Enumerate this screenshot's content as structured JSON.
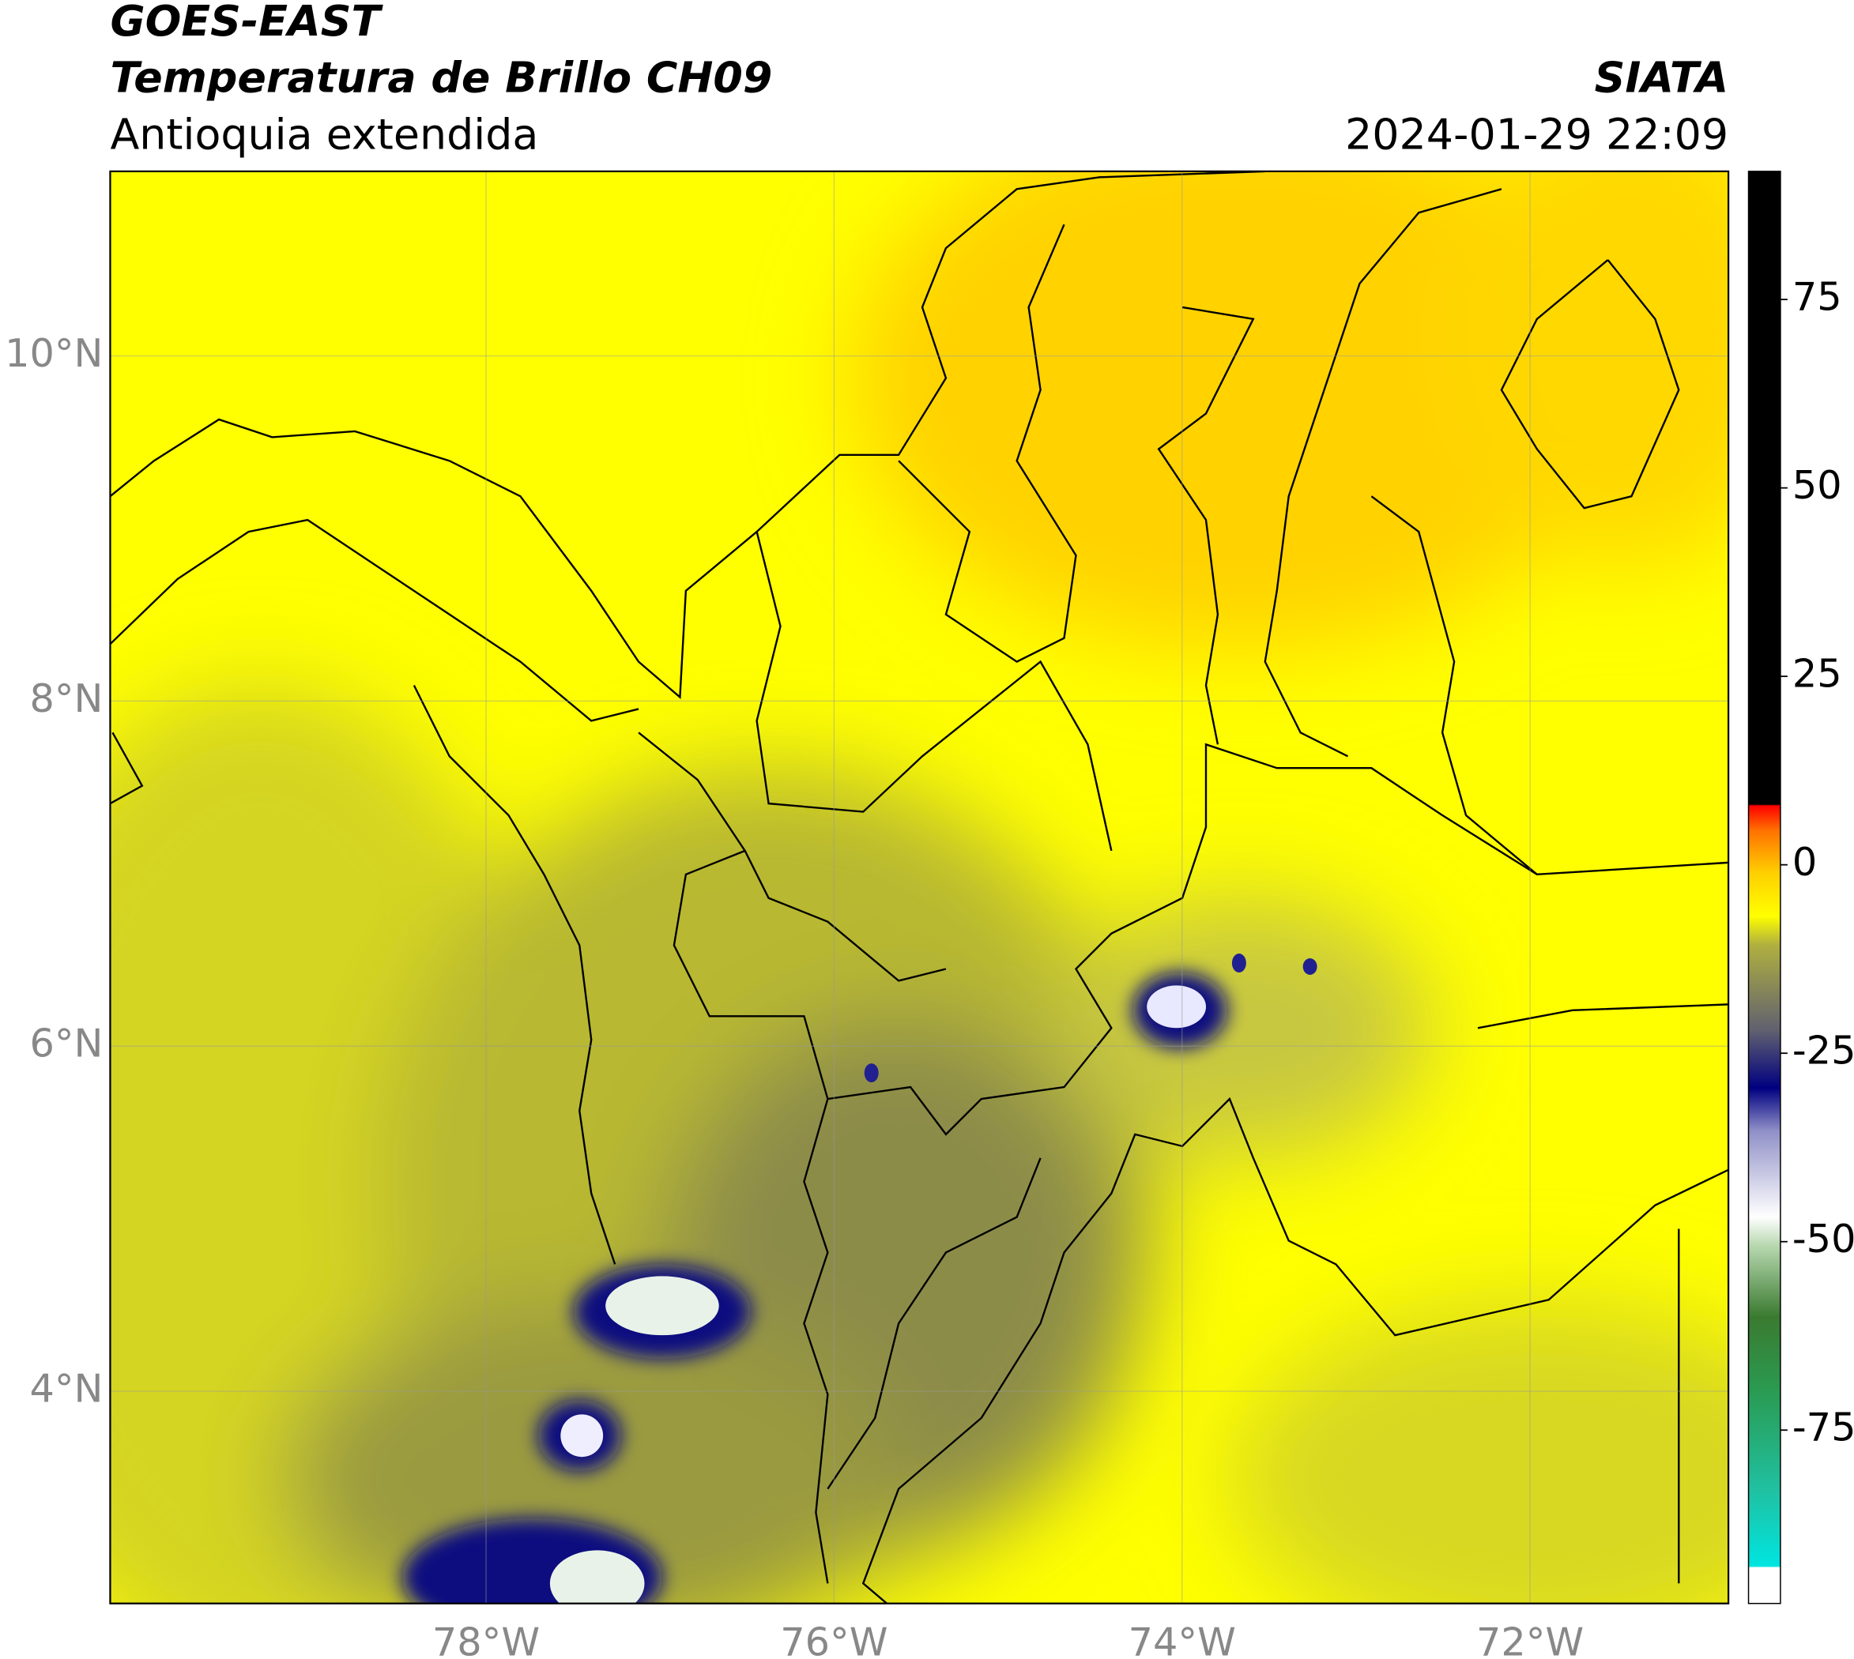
{
  "header": {
    "satellite": "GOES-EAST",
    "product": "Temperatura de Brillo CH09",
    "region": "Antioquia extendida",
    "agency": "SIATA",
    "datetime": "2024-01-29 22:09"
  },
  "map": {
    "lon_range": [
      -80.16,
      -70.86
    ],
    "lat_range": [
      2.77,
      11.07
    ],
    "grid": true,
    "lon_ticks": [
      {
        "value": -78,
        "label": "78°W"
      },
      {
        "value": -76,
        "label": "76°W"
      },
      {
        "value": -74,
        "label": "74°W"
      },
      {
        "value": -72,
        "label": "72°W"
      }
    ],
    "lat_ticks": [
      {
        "value": 4,
        "label": "4°N"
      },
      {
        "value": 6,
        "label": "6°N"
      },
      {
        "value": 8,
        "label": "8°N"
      },
      {
        "value": 10,
        "label": "10°N"
      }
    ]
  },
  "colorbar": {
    "range": [
      -98,
      92
    ],
    "ticks": [
      75,
      50,
      25,
      0,
      -25,
      -50,
      -75
    ]
  }
}
